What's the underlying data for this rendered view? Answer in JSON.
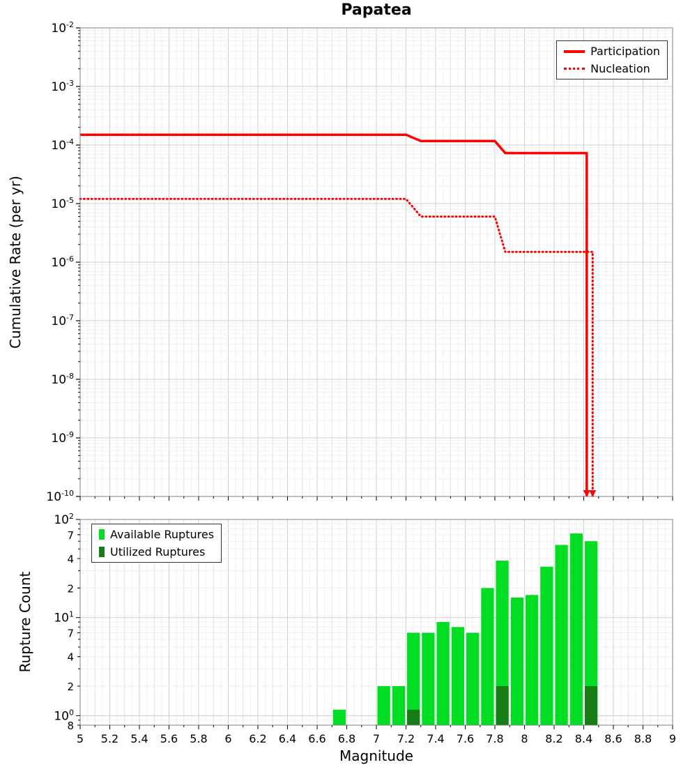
{
  "chart_data": [
    {
      "type": "line",
      "title": "Papatea",
      "ylabel": "Cumulative Rate (per yr)",
      "xlabel": "",
      "xlim": [
        5,
        9
      ],
      "ylim": [
        1e-10,
        0.01
      ],
      "grid": true,
      "legend_position": "top-right",
      "y_tick_exponents": [
        -2,
        -3,
        -4,
        -5,
        -6,
        -7,
        -8,
        -9,
        -10
      ],
      "series": [
        {
          "name": "Participation",
          "color": "#ff0000",
          "style": "solid",
          "points": [
            [
              5,
              0.00015
            ],
            [
              7.2,
              0.00015
            ],
            [
              7.3,
              0.000117
            ],
            [
              7.8,
              0.000117
            ],
            [
              7.87,
              7.3e-05
            ],
            [
              8.42,
              7.3e-05
            ],
            [
              8.42,
              1e-10
            ]
          ]
        },
        {
          "name": "Nucleation",
          "color": "#ff0000",
          "style": "dotted",
          "points": [
            [
              5,
              1.2e-05
            ],
            [
              7.2,
              1.2e-05
            ],
            [
              7.3,
              6e-06
            ],
            [
              7.8,
              6e-06
            ],
            [
              7.87,
              1.5e-06
            ],
            [
              8.46,
              1.5e-06
            ],
            [
              8.46,
              1e-10
            ]
          ]
        }
      ]
    },
    {
      "type": "bar",
      "title": "",
      "ylabel": "Rupture Count",
      "xlabel": "Magnitude",
      "xlim": [
        5,
        9
      ],
      "ylim": [
        0.8,
        100
      ],
      "grid": true,
      "legend_position": "top-left",
      "bar_width": 0.1,
      "x_tick_labels": [
        "5",
        "5.2",
        "5.4",
        "5.6",
        "5.8",
        "6",
        "6.2",
        "6.4",
        "6.6",
        "6.8",
        "7",
        "7.2",
        "7.4",
        "7.6",
        "7.8",
        "8",
        "8.2",
        "8.4",
        "8.6",
        "8.8",
        "9"
      ],
      "y_ticks": [
        {
          "v": 100,
          "label": "10",
          "exp": "2"
        },
        {
          "v": 70,
          "label": "7"
        },
        {
          "v": 40,
          "label": "4"
        },
        {
          "v": 20,
          "label": "2"
        },
        {
          "v": 10,
          "label": "10",
          "exp": "1"
        },
        {
          "v": 7,
          "label": "7"
        },
        {
          "v": 4,
          "label": "4"
        },
        {
          "v": 2,
          "label": "2"
        },
        {
          "v": 1,
          "label": "10",
          "exp": "0"
        },
        {
          "v": 0.8,
          "label": "8"
        }
      ],
      "series": [
        {
          "name": "Available Ruptures",
          "color": "#00dd22"
        },
        {
          "name": "Utilized Ruptures",
          "color": "#167d16"
        }
      ],
      "bars": [
        {
          "x": 6.7,
          "available": 1.15
        },
        {
          "x": 7.0,
          "available": 2
        },
        {
          "x": 7.1,
          "available": 2
        },
        {
          "x": 7.2,
          "available": 7,
          "utilized": 1.15
        },
        {
          "x": 7.3,
          "available": 7
        },
        {
          "x": 7.4,
          "available": 9
        },
        {
          "x": 7.5,
          "available": 8
        },
        {
          "x": 7.6,
          "available": 7
        },
        {
          "x": 7.7,
          "available": 20
        },
        {
          "x": 7.8,
          "available": 38,
          "utilized": 2
        },
        {
          "x": 7.9,
          "available": 16
        },
        {
          "x": 8.0,
          "available": 17
        },
        {
          "x": 8.1,
          "available": 33
        },
        {
          "x": 8.2,
          "available": 55
        },
        {
          "x": 8.3,
          "available": 72
        },
        {
          "x": 8.4,
          "available": 60,
          "utilized": 2
        }
      ]
    }
  ]
}
